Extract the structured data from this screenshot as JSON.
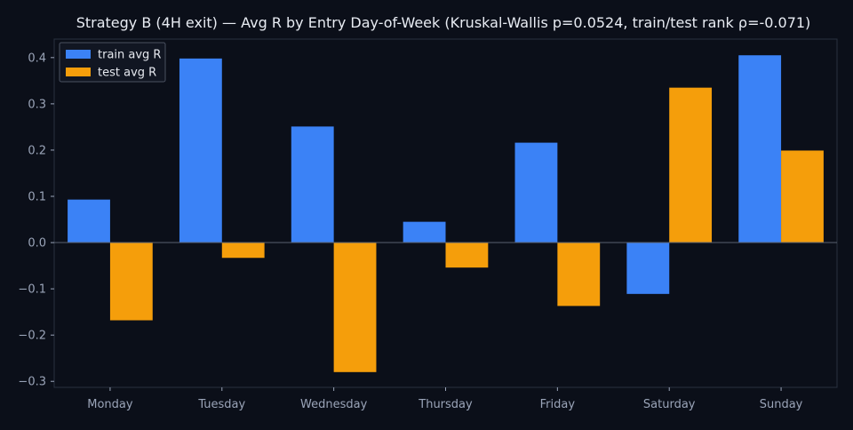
{
  "chart_data": {
    "type": "bar",
    "title": "Strategy B (4H exit) — Avg R by Entry Day-of-Week (Kruskal-Wallis p=0.0524, train/test rank ρ=-0.071)",
    "xlabel": "",
    "ylabel": "",
    "categories": [
      "Monday",
      "Tuesday",
      "Wednesday",
      "Thursday",
      "Friday",
      "Saturday",
      "Sunday"
    ],
    "series": [
      {
        "name": "train avg R",
        "color": "#3b82f6",
        "values": [
          0.093,
          0.398,
          0.251,
          0.045,
          0.216,
          -0.111,
          0.405
        ]
      },
      {
        "name": "test avg R",
        "color": "#f59e0b",
        "values": [
          -0.168,
          -0.033,
          -0.28,
          -0.054,
          -0.137,
          0.335,
          0.199
        ]
      }
    ],
    "ylim": [
      -0.313,
      0.44
    ],
    "yticks": [
      -0.3,
      -0.2,
      -0.1,
      0.0,
      0.1,
      0.2,
      0.3,
      0.4
    ],
    "ytick_labels": [
      "−0.3",
      "−0.2",
      "−0.1",
      "0.0",
      "0.1",
      "0.2",
      "0.3",
      "0.4"
    ],
    "grid": false,
    "legend_position": "top-left",
    "colors": {
      "background": "#0b0f19",
      "axes_edge": "#2a3140",
      "zero_line": "#5a6270",
      "tick_text": "#9aa4b8",
      "title_text": "#e8ecf3",
      "legend_text": "#e6e9ef",
      "legend_bg": "#111622",
      "legend_edge": "#4a5160"
    }
  }
}
